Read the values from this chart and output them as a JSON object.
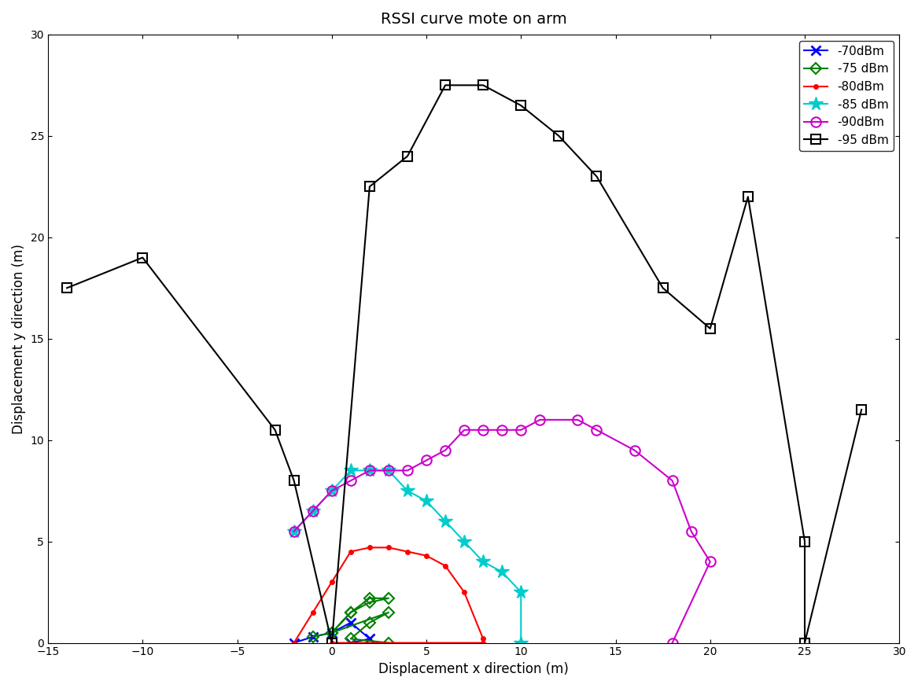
{
  "title": "RSSI curve mote on arm",
  "xlabel": "Displacement x direction (m)",
  "ylabel": "Displacement y direction (m)",
  "xlim": [
    -15,
    30
  ],
  "ylim": [
    0,
    30
  ],
  "xticks": [
    -15,
    -10,
    -5,
    0,
    5,
    10,
    15,
    20,
    25,
    30
  ],
  "yticks": [
    0,
    5,
    10,
    15,
    20,
    25,
    30
  ],
  "s70_x": [
    -2,
    -1,
    0,
    1,
    2,
    1
  ],
  "s70_y": [
    0,
    0.3,
    0.5,
    1.0,
    0.2,
    0
  ],
  "s75_x": [
    -1,
    0,
    1,
    2,
    3,
    2,
    1,
    0,
    3,
    2,
    1,
    3
  ],
  "s75_y": [
    0.3,
    0.5,
    1.5,
    2.2,
    2.2,
    2.0,
    1.5,
    0.5,
    1.5,
    1.0,
    0.2,
    0
  ],
  "s80_x": [
    -2,
    -1,
    0,
    1,
    2,
    3,
    4,
    5,
    6,
    7,
    8,
    8,
    0
  ],
  "s80_y": [
    0,
    1.5,
    3.0,
    4.5,
    4.7,
    4.7,
    4.5,
    4.3,
    3.8,
    2.5,
    0.2,
    0,
    0
  ],
  "s85_x": [
    -2,
    -1,
    0,
    1,
    2,
    3,
    4,
    5,
    6,
    7,
    8,
    9,
    10,
    10
  ],
  "s85_y": [
    5.5,
    6.5,
    7.5,
    8.5,
    8.5,
    8.5,
    7.5,
    7.0,
    6.0,
    5.0,
    4.0,
    3.5,
    2.5,
    0
  ],
  "s90_x": [
    -2,
    -1,
    0,
    1,
    2,
    3,
    4,
    5,
    6,
    7,
    8,
    9,
    10,
    11,
    13,
    14,
    16,
    18,
    19,
    20,
    18
  ],
  "s90_y": [
    5.5,
    6.5,
    7.5,
    8.0,
    8.5,
    8.5,
    8.5,
    9.0,
    9.5,
    10.5,
    10.5,
    10.5,
    10.5,
    11.0,
    11.0,
    10.5,
    9.5,
    8.0,
    5.5,
    4.0,
    0
  ],
  "s95_x": [
    -14,
    -10,
    -3,
    -2,
    0,
    2,
    4,
    6,
    8,
    10,
    12,
    14,
    17.5,
    20,
    22,
    25,
    25,
    28
  ],
  "s95_y": [
    17.5,
    19.0,
    10.5,
    8.0,
    0,
    22.5,
    24.0,
    27.5,
    27.5,
    26.5,
    25.0,
    23.0,
    17.5,
    15.5,
    22.0,
    5.0,
    0,
    11.5
  ],
  "colors": {
    "s70": "#0000FF",
    "s75": "#008000",
    "s80": "#FF0000",
    "s85": "#00CCCC",
    "s90": "#CC00CC",
    "s95": "#000000"
  },
  "labels": {
    "s70": "-70dBm",
    "s75": "-75 dBm",
    "s80": "-80dBm",
    "s85": "-85 dBm",
    "s90": "-90dBm",
    "s95": "-95 dBm"
  }
}
